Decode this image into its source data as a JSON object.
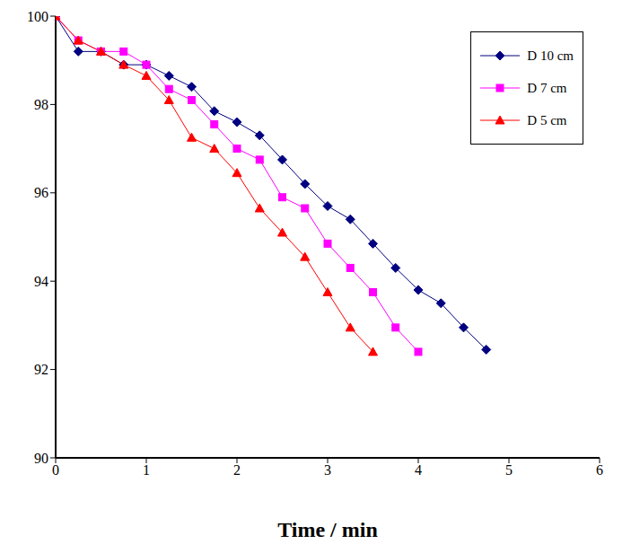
{
  "chart_data": {
    "type": "line",
    "x_label": "Time / min",
    "xlim": [
      0,
      6
    ],
    "xticks": [
      0,
      1,
      2,
      3,
      4,
      5,
      6
    ],
    "ylim": [
      90,
      100
    ],
    "yticks": [
      90,
      92,
      94,
      96,
      98,
      100
    ],
    "legend": "upper right",
    "grid": false,
    "series": [
      {
        "name": "D 10 cm",
        "color": "#000080",
        "marker": "diamond",
        "x": [
          0,
          0.25,
          0.5,
          0.75,
          1,
          1.25,
          1.5,
          1.75,
          2,
          2.25,
          2.5,
          2.75,
          3,
          3.25,
          3.5,
          3.75,
          4,
          4.25,
          4.5,
          4.75
        ],
        "values": [
          100,
          99.2,
          99.2,
          98.9,
          98.9,
          98.65,
          98.4,
          97.85,
          97.6,
          97.3,
          96.75,
          96.2,
          95.7,
          95.4,
          94.85,
          94.3,
          93.8,
          93.5,
          92.95,
          92.45
        ]
      },
      {
        "name": "D 7 cm",
        "color": "#ff00ff",
        "marker": "square",
        "x": [
          0,
          0.25,
          0.5,
          0.75,
          1,
          1.25,
          1.5,
          1.75,
          2,
          2.25,
          2.5,
          2.75,
          3,
          3.25,
          3.5,
          3.75,
          4
        ],
        "values": [
          100,
          99.45,
          99.2,
          99.2,
          98.9,
          98.35,
          98.1,
          97.55,
          97.0,
          96.75,
          95.9,
          95.65,
          94.85,
          94.3,
          93.75,
          92.95,
          92.4
        ]
      },
      {
        "name": "D 5 cm",
        "color": "#ff0000",
        "marker": "triangle",
        "x": [
          0,
          0.25,
          0.5,
          0.75,
          1,
          1.25,
          1.5,
          1.75,
          2,
          2.25,
          2.5,
          2.75,
          3,
          3.25,
          3.5
        ],
        "values": [
          100,
          99.45,
          99.2,
          98.9,
          98.65,
          98.1,
          97.25,
          97.0,
          96.45,
          95.65,
          95.1,
          94.55,
          93.75,
          92.95,
          92.4
        ]
      }
    ]
  }
}
